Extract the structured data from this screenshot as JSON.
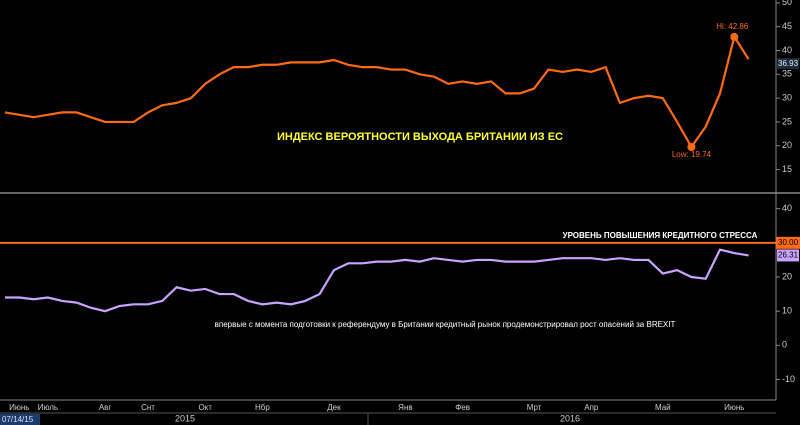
{
  "chart_data": [
    {
      "type": "line",
      "title": "ИНДЕКС ВЕРОЯТНОСТИ ВЫХОДА БРИТАНИИ ИЗ ЕС",
      "series": [
        {
          "color": "#ff6a13",
          "values": [
            27,
            26.5,
            26,
            26.5,
            27,
            27,
            26,
            25,
            25,
            25,
            27,
            28.5,
            29,
            30,
            33,
            35,
            36.5,
            36.5,
            37,
            37,
            37.5,
            37.5,
            37.5,
            38,
            37,
            36.5,
            36.5,
            36,
            36,
            35,
            34.5,
            33,
            33.5,
            33,
            33.5,
            31,
            31,
            32,
            36,
            35.5,
            36,
            35.5,
            36.5,
            29,
            30,
            30.5,
            30,
            25,
            19.74,
            24,
            31,
            42.86,
            38.17
          ]
        }
      ],
      "annotations": {
        "high": "Hi: 42.86",
        "low": "Low: 19.74",
        "side_label": "36.93"
      },
      "ylim": [
        10.5,
        50.6
      ],
      "yticks": [
        15,
        20,
        25,
        30,
        35,
        40,
        45,
        50
      ]
    },
    {
      "type": "line",
      "title": "впервые с момента подготовки к референдуму в Британии кредитный рынок продемонстрировал рост опасений за BREXIT",
      "categories": [
        null,
        "Июнь",
        null,
        "Июль",
        null,
        null,
        null,
        "Авг",
        null,
        null,
        "Снт",
        null,
        null,
        null,
        "Окт",
        null,
        null,
        null,
        "Нбр",
        null,
        null,
        null,
        null,
        "Дек",
        null,
        null,
        null,
        null,
        "Янв",
        null,
        null,
        null,
        "Фев",
        null,
        null,
        null,
        null,
        "Мрт",
        null,
        null,
        null,
        "Апр",
        null,
        null,
        null,
        null,
        "Май",
        null,
        null,
        null,
        null,
        "Июнь",
        null
      ],
      "series": [
        {
          "color": "#c9a3ff",
          "values": [
            14,
            14,
            13.5,
            14,
            13,
            12.5,
            11,
            10,
            11.5,
            12,
            12,
            13,
            17,
            16,
            16.5,
            15,
            15,
            13,
            12,
            12.5,
            12,
            13,
            15,
            22,
            24,
            24,
            24.5,
            24.5,
            25,
            24.5,
            25.5,
            25,
            24.5,
            25,
            25,
            24.5,
            24.5,
            24.5,
            25,
            25.5,
            25.5,
            25.5,
            25,
            25.5,
            25,
            25,
            21,
            22,
            20,
            19.5,
            28,
            27,
            26.31
          ],
          "last_label": "26.31"
        }
      ],
      "threshold": {
        "value": 30,
        "label": "30.00",
        "text": "УРОВЕНЬ ПОВЫШЕНИЯ КРЕДИТНОГО СТРЕССА"
      },
      "year_labels": [
        "2015",
        "2016"
      ],
      "cursor_label": "07/14/15",
      "ylim": [
        -16,
        44
      ],
      "yticks": [
        -10,
        0,
        10,
        20,
        30,
        40
      ]
    }
  ]
}
